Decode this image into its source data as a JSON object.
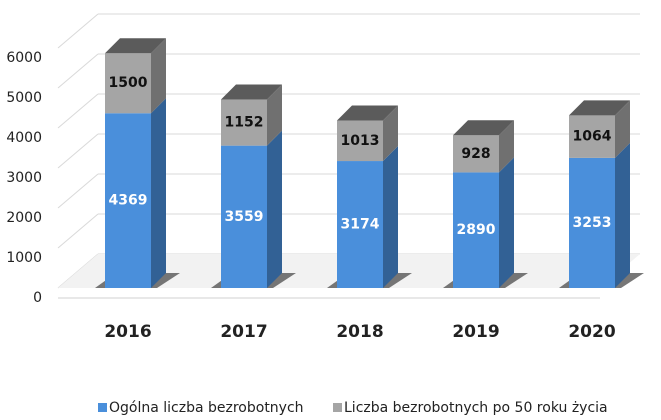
{
  "chart_data": {
    "type": "bar3d_stacked",
    "categories": [
      "2016",
      "2017",
      "2018",
      "2019",
      "2020"
    ],
    "series": [
      {
        "name": "Ogólna liczba bezrobotnych",
        "color": "#4a8fdb",
        "values": [
          4369,
          3559,
          3174,
          2890,
          3253
        ]
      },
      {
        "name": "Liczba bezrobotnych po 50 roku życia",
        "color": "#a5a5a5",
        "values": [
          1500,
          1152,
          1013,
          928,
          1064
        ]
      }
    ],
    "ylim": [
      0,
      6000
    ],
    "yticks": [
      0,
      1000,
      2000,
      3000,
      4000,
      5000,
      6000
    ],
    "grid": true
  }
}
